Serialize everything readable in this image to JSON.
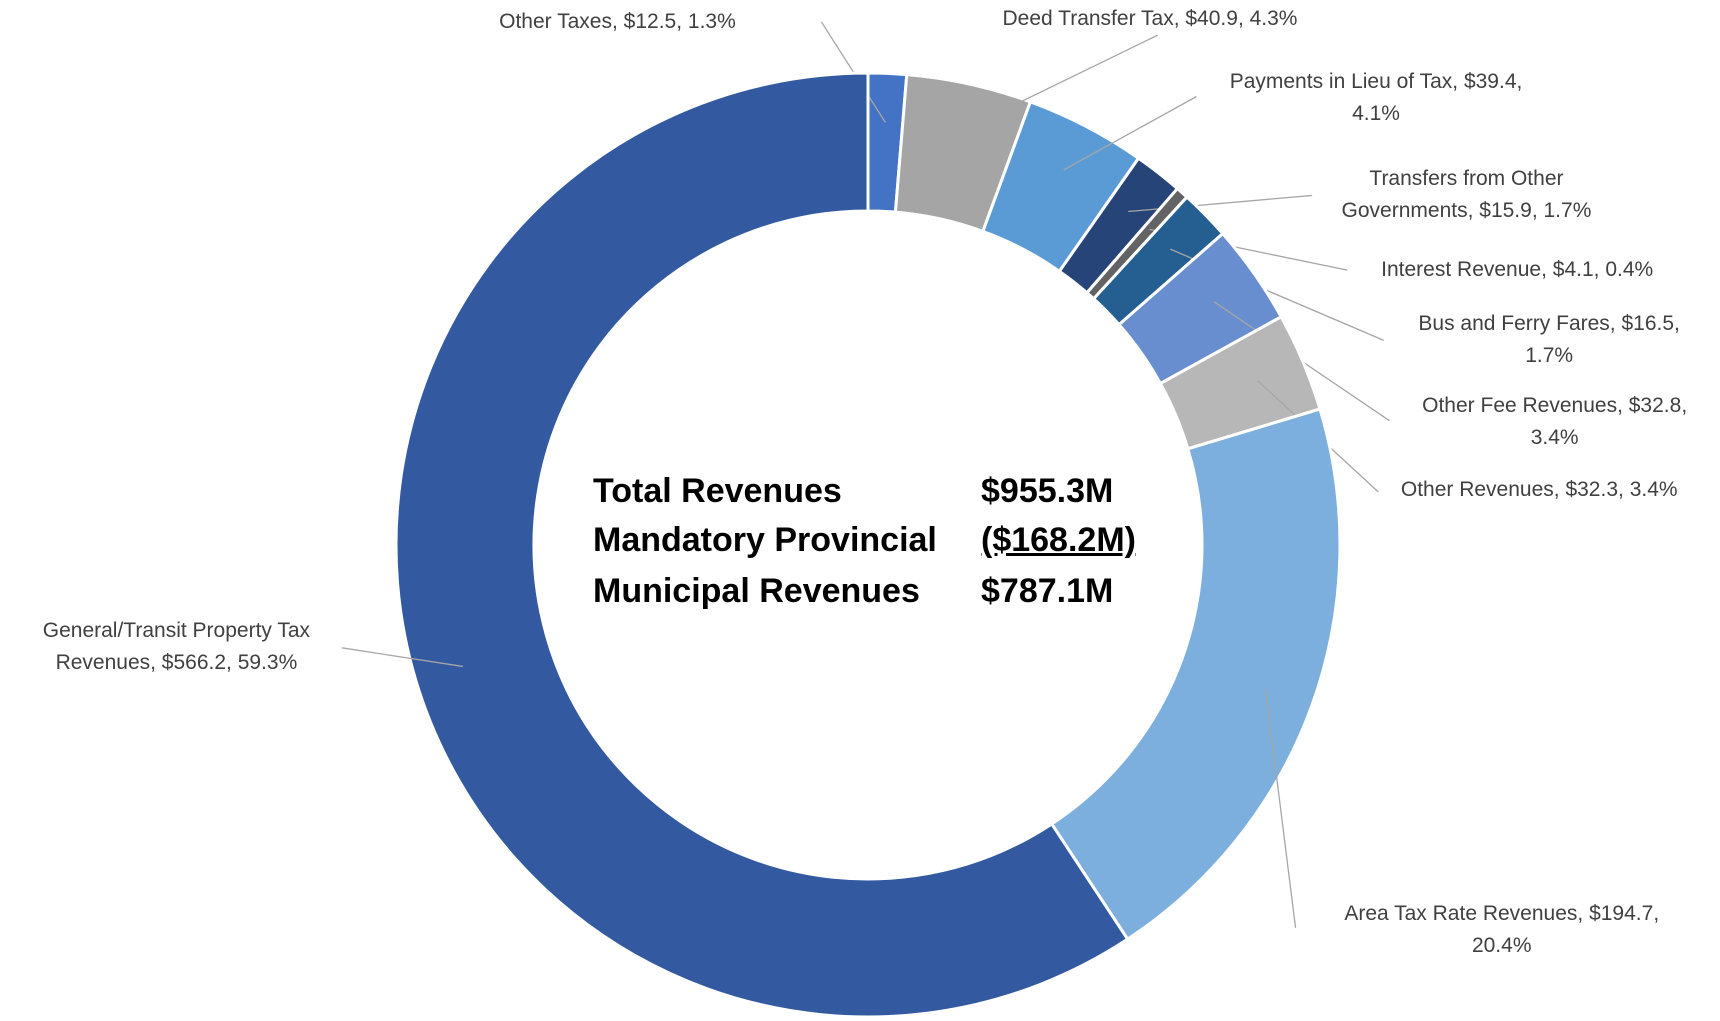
{
  "chart_data": {
    "type": "donut",
    "categories": [
      "Other Taxes",
      "Deed Transfer Tax",
      "Payments in Lieu of Tax",
      "Transfers from Other Governments",
      "Interest Revenue",
      "Bus and Ferry Fares",
      "Other Fee Revenues",
      "Other Revenues",
      "Area Tax Rate Revenues",
      "General/Transit Property Tax Revenues"
    ],
    "values": [
      12.5,
      40.9,
      39.4,
      15.9,
      4.1,
      16.5,
      32.8,
      32.3,
      194.7,
      566.2
    ],
    "value_labels": [
      "$12.5",
      "$40.9",
      "$39.4",
      "$15.9",
      "$4.1",
      "$16.5",
      "$32.8",
      "$32.3",
      "$194.7",
      "$566.2"
    ],
    "percents": [
      1.3,
      4.3,
      4.1,
      1.7,
      0.4,
      1.7,
      3.4,
      3.4,
      20.4,
      59.3
    ],
    "percent_labels": [
      "1.3%",
      "4.3%",
      "4.1%",
      "1.7%",
      "0.4%",
      "1.7%",
      "3.4%",
      "3.4%",
      "20.4%",
      "59.3%"
    ],
    "colors": [
      "#4472c4",
      "#a5a5a5",
      "#5b9bd5",
      "#264478",
      "#636363",
      "#255e91",
      "#698ed0",
      "#b7b7b7",
      "#7cafdd",
      "#335aa1"
    ],
    "center_text": [
      {
        "label": "Total Revenues",
        "value": "$955.3M"
      },
      {
        "label": "Mandatory Provincial",
        "value": "($168.2M)"
      },
      {
        "label": "Municipal Revenues",
        "value": "$787.1M"
      }
    ]
  }
}
